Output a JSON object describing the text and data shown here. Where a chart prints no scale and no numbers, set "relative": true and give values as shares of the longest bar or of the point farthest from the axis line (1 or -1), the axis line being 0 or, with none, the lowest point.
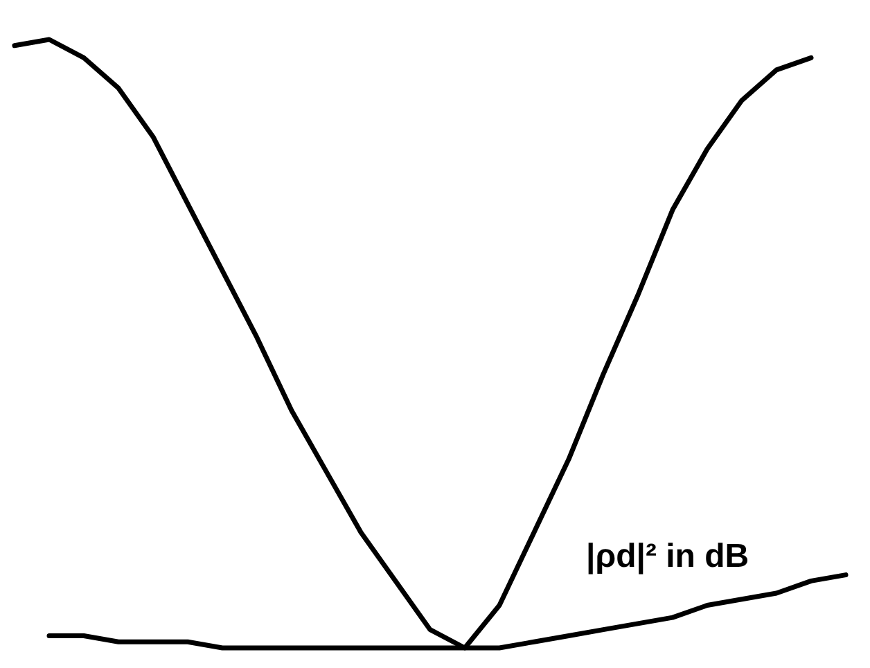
{
  "chart_data": {
    "type": "line",
    "relative": true,
    "categories": [
      null,
      null,
      null,
      null,
      null,
      null,
      null,
      null,
      null,
      null,
      null,
      null,
      null,
      null,
      null,
      null,
      null,
      null,
      null,
      null,
      null,
      null,
      null,
      null,
      null
    ],
    "series": [
      {
        "color": "#000000",
        "values": [
          0.99,
          1.0,
          0.97,
          0.92,
          0.84,
          0.73,
          0.62,
          0.51,
          0.39,
          0.29,
          0.19,
          0.11,
          0.03,
          0.0,
          0.07,
          0.19,
          0.31,
          0.45,
          0.58,
          0.72,
          0.82,
          0.9,
          0.95,
          0.97,
          null
        ]
      },
      {
        "name": "|ρd|² in dB",
        "color": "#000000",
        "values": [
          null,
          0.02,
          0.02,
          0.01,
          0.01,
          0.01,
          0.0,
          0.0,
          0.0,
          0.0,
          0.0,
          0.0,
          0.0,
          0.0,
          0.0,
          0.01,
          0.02,
          0.03,
          0.04,
          0.05,
          0.07,
          0.08,
          0.09,
          0.11,
          0.12
        ]
      }
    ],
    "grid": false,
    "legend": false
  }
}
